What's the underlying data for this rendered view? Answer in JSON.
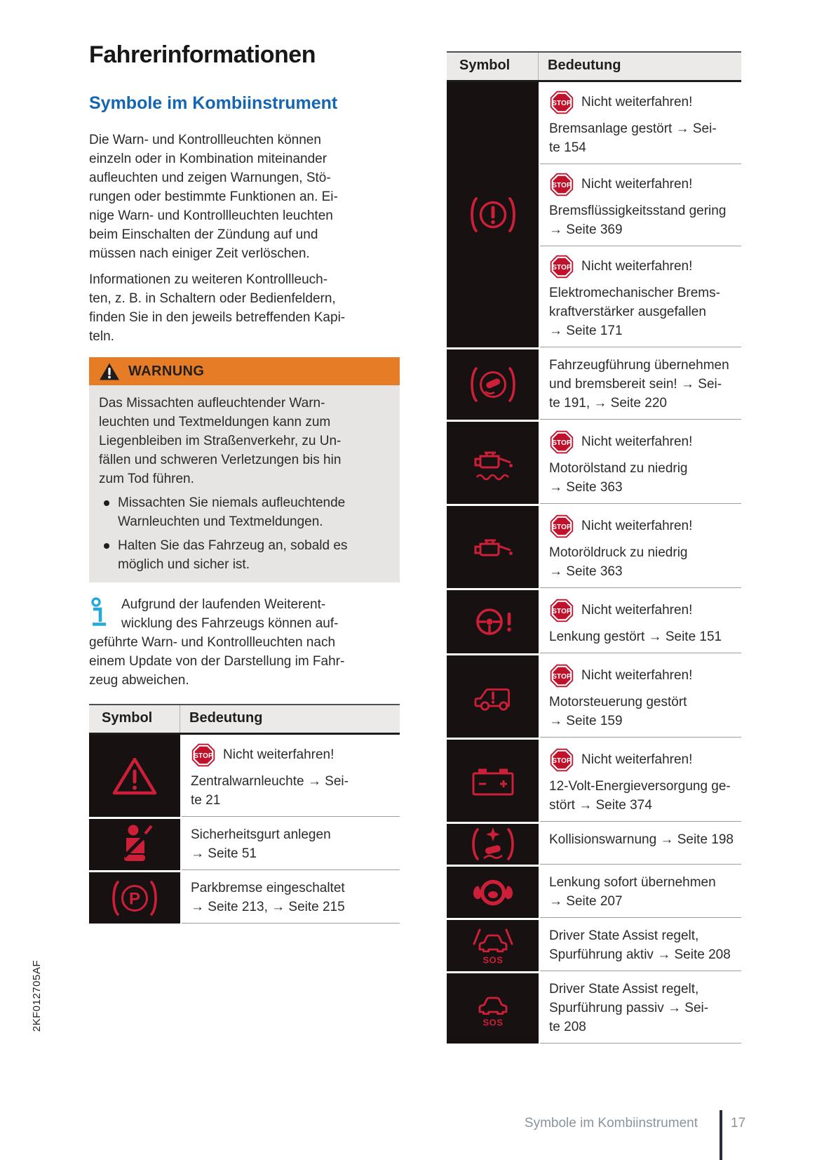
{
  "page": {
    "title": "Fahrerinformationen",
    "section_heading": "Symbole im Kombiinstrument",
    "paragraphs": [
      "Die Warn- und Kontrollleuchten können\neinzeln oder in Kombination miteinander\naufleuchten und zeigen Warnungen, Stö-\nrungen oder bestimmte Funktionen an. Ei-\nnige Warn- und Kontrollleuchten leuchten\nbeim Einschalten der Zündung auf und\nmüssen nach einiger Zeit verlöschen.",
      "Informationen zu weiteren Kontrollleuch-\nten, z. B. in Schaltern oder Bedienfeldern,\nfinden Sie in den jeweils betreffenden Kapi-\nteln."
    ],
    "warning": {
      "label": "WARNUNG",
      "body": "Das Missachten aufleuchtender Warn-\nleuchten und Textmeldungen kann zum\nLiegenbleiben im Straßenverkehr, zu Un-\nfällen und schweren Verletzungen bis hin\nzum Tod führen.",
      "bullets": [
        "Missachten Sie niemals aufleuchtende\nWarnleuchten und Textmeldungen.",
        "Halten Sie das Fahrzeug an, sobald es\nmöglich und sicher ist."
      ]
    },
    "note": "Aufgrund der laufenden Weiterent-\nwicklung des Fahrzeugs können auf-\ngeführte Warn- und Kontrollleuchten nach\neinem Update von der Darstellung im Fahr-\nzeug abweichen.",
    "spine_code": "2KF012705AF",
    "footer": {
      "section": "Symbole im Kombiinstrument",
      "page_number": "17"
    }
  },
  "stop_badge": {
    "label": "STOP"
  },
  "icons": {
    "parking_letter": "P",
    "sos_label": "SOS",
    "red": "#cd1f38",
    "cyan": "#25a9d8",
    "cell_black": "#171112",
    "stop_red": "#c0122b"
  },
  "left_table": {
    "headers": [
      "Symbol",
      "Bedeutung"
    ],
    "rows": [
      {
        "icon": "central-warning-icon",
        "entries": [
          {
            "stop": true,
            "stop_label": "Nicht weiterfahren!",
            "text": "Zentralwarnleuchte → Sei-\nte 21"
          }
        ]
      },
      {
        "icon": "seatbelt-icon",
        "entries": [
          {
            "stop": false,
            "text": "Sicherheitsgurt anlegen\n→ Seite 51"
          }
        ]
      },
      {
        "icon": "parking-brake-icon",
        "entries": [
          {
            "stop": false,
            "text": "Parkbremse eingeschaltet\n→ Seite 213, → Seite 215"
          }
        ]
      }
    ]
  },
  "right_table": {
    "headers": [
      "Symbol",
      "Bedeutung"
    ],
    "rows": [
      {
        "icon": "brake-warning-icon",
        "entries": [
          {
            "stop": true,
            "stop_label": "Nicht weiterfahren!",
            "text": "Bremsanlage gestört → Sei-\nte 154"
          },
          {
            "stop": true,
            "stop_label": "Nicht weiterfahren!",
            "text": "Bremsflüssigkeitsstand gering\n→ Seite 369"
          },
          {
            "stop": true,
            "stop_label": "Nicht weiterfahren!",
            "text": "Elektromechanischer Brems-\nkraftverstärker ausgefallen\n→ Seite 171"
          }
        ]
      },
      {
        "icon": "brake-assist-icon",
        "entries": [
          {
            "stop": false,
            "text": "Fahrzeugführung übernehmen\nund bremsbereit sein! → Sei-\nte 191, → Seite 220"
          }
        ]
      },
      {
        "icon": "oil-level-icon",
        "entries": [
          {
            "stop": true,
            "stop_label": "Nicht weiterfahren!",
            "text": "Motorölstand zu niedrig\n→ Seite 363"
          }
        ]
      },
      {
        "icon": "oil-pressure-icon",
        "entries": [
          {
            "stop": true,
            "stop_label": "Nicht weiterfahren!",
            "text": "Motoröldruck zu niedrig\n→ Seite 363"
          }
        ]
      },
      {
        "icon": "steering-warning-icon",
        "entries": [
          {
            "stop": true,
            "stop_label": "Nicht weiterfahren!",
            "text": "Lenkung gestört → Seite 151"
          }
        ]
      },
      {
        "icon": "engine-control-icon",
        "entries": [
          {
            "stop": true,
            "stop_label": "Nicht weiterfahren!",
            "text": "Motorsteuerung gestört\n→ Seite 159"
          }
        ]
      },
      {
        "icon": "battery-icon",
        "entries": [
          {
            "stop": true,
            "stop_label": "Nicht weiterfahren!",
            "text": "12-Volt-Energieversorgung ge-\nstört → Seite 374"
          }
        ]
      },
      {
        "icon": "collision-warning-icon",
        "entries": [
          {
            "stop": false,
            "text": "Kollisionswarnung → Seite 198"
          }
        ]
      },
      {
        "icon": "steering-takeover-icon",
        "entries": [
          {
            "stop": false,
            "text": "Lenkung sofort übernehmen\n→ Seite 207"
          }
        ]
      },
      {
        "icon": "lane-active-sos-icon",
        "entries": [
          {
            "stop": false,
            "text": "Driver State Assist regelt,\nSpurführung aktiv → Seite 208"
          }
        ]
      },
      {
        "icon": "lane-passive-sos-icon",
        "entries": [
          {
            "stop": false,
            "text": "Driver State Assist regelt,\nSpurführung passiv → Sei-\nte 208"
          }
        ]
      }
    ]
  }
}
